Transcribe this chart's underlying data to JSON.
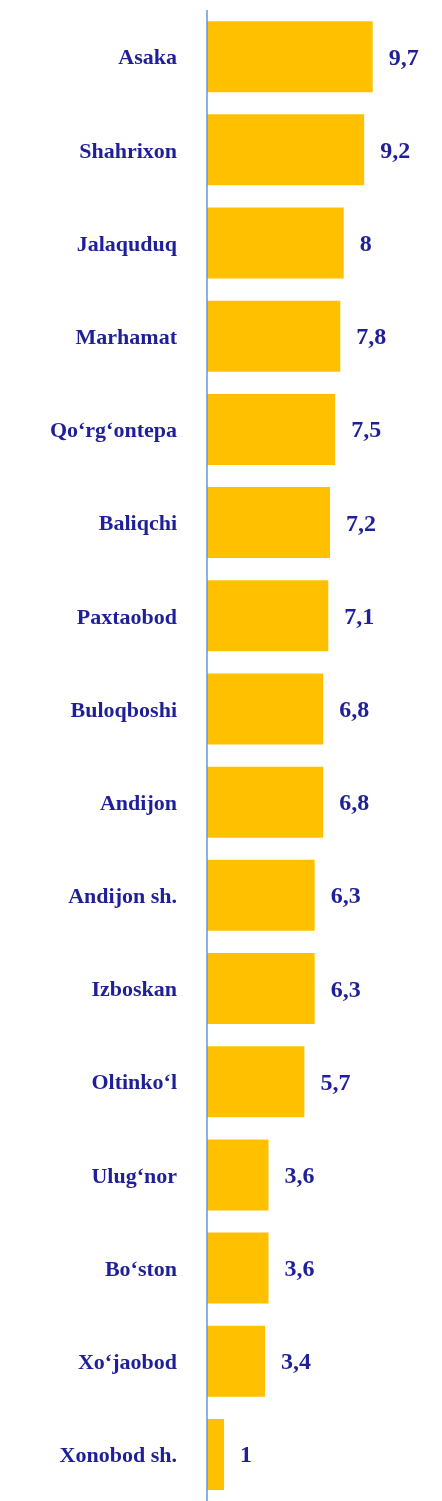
{
  "chart_data": {
    "type": "bar",
    "orientation": "horizontal",
    "categories": [
      "Asaka",
      "Shahrixon",
      "Jalaquduq",
      "Marhamat",
      "Qo‘rg‘ontepa",
      "Baliqchi",
      "Paxtaobod",
      "Buloqboshi",
      "Andijon",
      "Andijon sh.",
      "Izboskan",
      "Oltinko‘l",
      "Ulug‘nor",
      "Bo‘ston",
      "Xo‘jaobod",
      "Xonobod sh."
    ],
    "values": [
      9.7,
      9.2,
      8,
      7.8,
      7.5,
      7.2,
      7.1,
      6.8,
      6.8,
      6.3,
      6.3,
      5.7,
      3.6,
      3.6,
      3.4,
      1
    ],
    "value_labels": [
      "9,7",
      "9,2",
      "8",
      "7,8",
      "7,5",
      "7,2",
      "7,1",
      "6,8",
      "6,8",
      "6,3",
      "6,3",
      "5,7",
      "3,6",
      "3,6",
      "3,4",
      "1"
    ],
    "color": "#ffc000",
    "tick_labels": "y",
    "grid": false,
    "legend": false
  }
}
